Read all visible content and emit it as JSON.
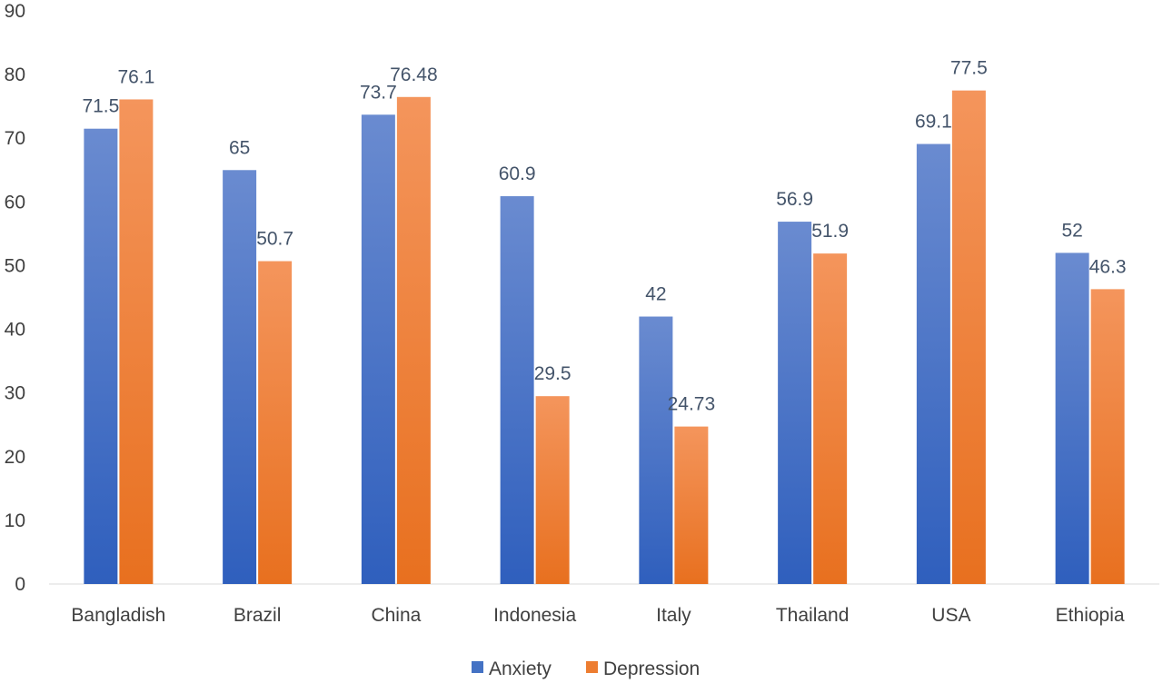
{
  "chart_data": {
    "type": "bar",
    "categories": [
      "Bangladish",
      "Brazil",
      "China",
      "Indonesia",
      "Italy",
      "Thailand",
      "USA",
      "Ethiopia"
    ],
    "series": [
      {
        "name": "Anxiety",
        "values": [
          71.5,
          65,
          73.7,
          60.9,
          42,
          56.9,
          69.1,
          52
        ],
        "labels": [
          "71.5",
          "65",
          "73.7",
          "60.9",
          "42",
          "56.9",
          "69.1",
          "52"
        ],
        "color": "#4472c4"
      },
      {
        "name": "Depression",
        "values": [
          76.1,
          50.7,
          76.48,
          29.5,
          24.73,
          51.9,
          77.5,
          46.3
        ],
        "labels": [
          "76.1",
          "50.7",
          "76.48",
          "29.5",
          "24.73",
          "51.9",
          "77.5",
          "46.3"
        ],
        "color": "#ed7d31"
      }
    ],
    "yticks": [
      "0",
      "10",
      "20",
      "30",
      "40",
      "50",
      "60",
      "70",
      "80",
      "90"
    ],
    "ylim": [
      0,
      90
    ],
    "title": "",
    "xlabel": "",
    "ylabel": "",
    "grid": false,
    "legend": "bottom"
  }
}
